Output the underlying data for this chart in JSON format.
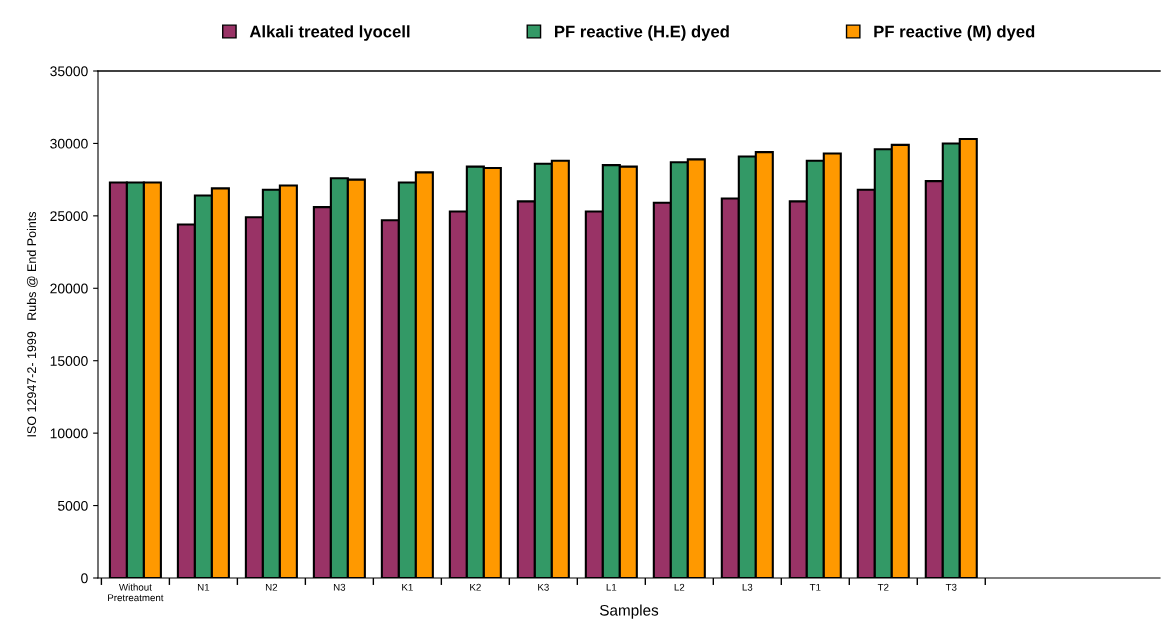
{
  "chart_data": {
    "type": "bar",
    "xlabel": "Samples",
    "ylabel": "ISO 12947-2- 1999   Rubs @ End Points",
    "categories": [
      "Without\nPretreatment",
      "N1",
      "N2",
      "N3",
      "K1",
      "K2",
      "K3",
      "L1",
      "L2",
      "L3",
      "T1",
      "T2",
      "T3"
    ],
    "series": [
      {
        "name": "Alkali treated lyocell",
        "color": "#993366",
        "values": [
          27300,
          24400,
          24900,
          25600,
          24700,
          25300,
          26000,
          25300,
          25900,
          26200,
          26000,
          26800,
          27400
        ]
      },
      {
        "name": "PF reactive (H.E) dyed",
        "color": "#339966",
        "values": [
          27300,
          26400,
          26800,
          27600,
          27300,
          28400,
          28600,
          28500,
          28700,
          29100,
          28800,
          29600,
          30000
        ]
      },
      {
        "name": "PF reactive (M) dyed",
        "color": "#ff9900",
        "values": [
          27300,
          26900,
          27100,
          27500,
          28000,
          28300,
          28800,
          28400,
          28900,
          29400,
          29300,
          29900,
          30300
        ]
      }
    ],
    "ylim": [
      0,
      35000
    ],
    "yticks": [
      0,
      5000,
      10000,
      15000,
      20000,
      25000,
      30000,
      35000
    ],
    "grid": false,
    "legend": "top"
  }
}
